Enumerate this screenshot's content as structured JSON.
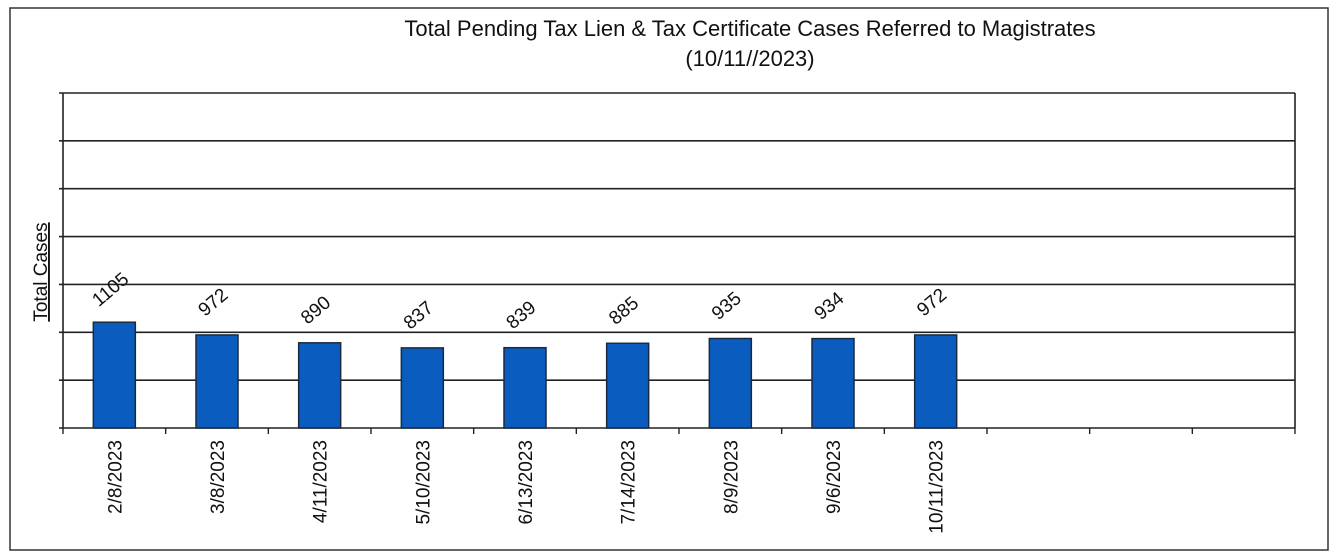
{
  "chart_data": {
    "type": "bar",
    "title": "Total Pending Tax Lien & Tax Certificate Cases Referred to Magistrates",
    "subtitle": "(10/11//2023)",
    "y_label": "Total Cases",
    "categories": [
      "2/8/2023",
      "3/8/2023",
      "4/11/2023",
      "5/10/2023",
      "6/13/2023",
      "7/14/2023",
      "8/9/2023",
      "9/6/2023",
      "10/11/2023",
      null,
      null,
      null
    ],
    "values": [
      1105,
      972,
      890,
      837,
      839,
      885,
      935,
      934,
      972,
      null,
      null,
      null
    ],
    "color": "#0a5cbf",
    "ylim": [
      0,
      3500
    ],
    "yticks": [
      0,
      500,
      1000,
      1500,
      2000,
      2500,
      3000,
      3500
    ],
    "grid": true
  }
}
